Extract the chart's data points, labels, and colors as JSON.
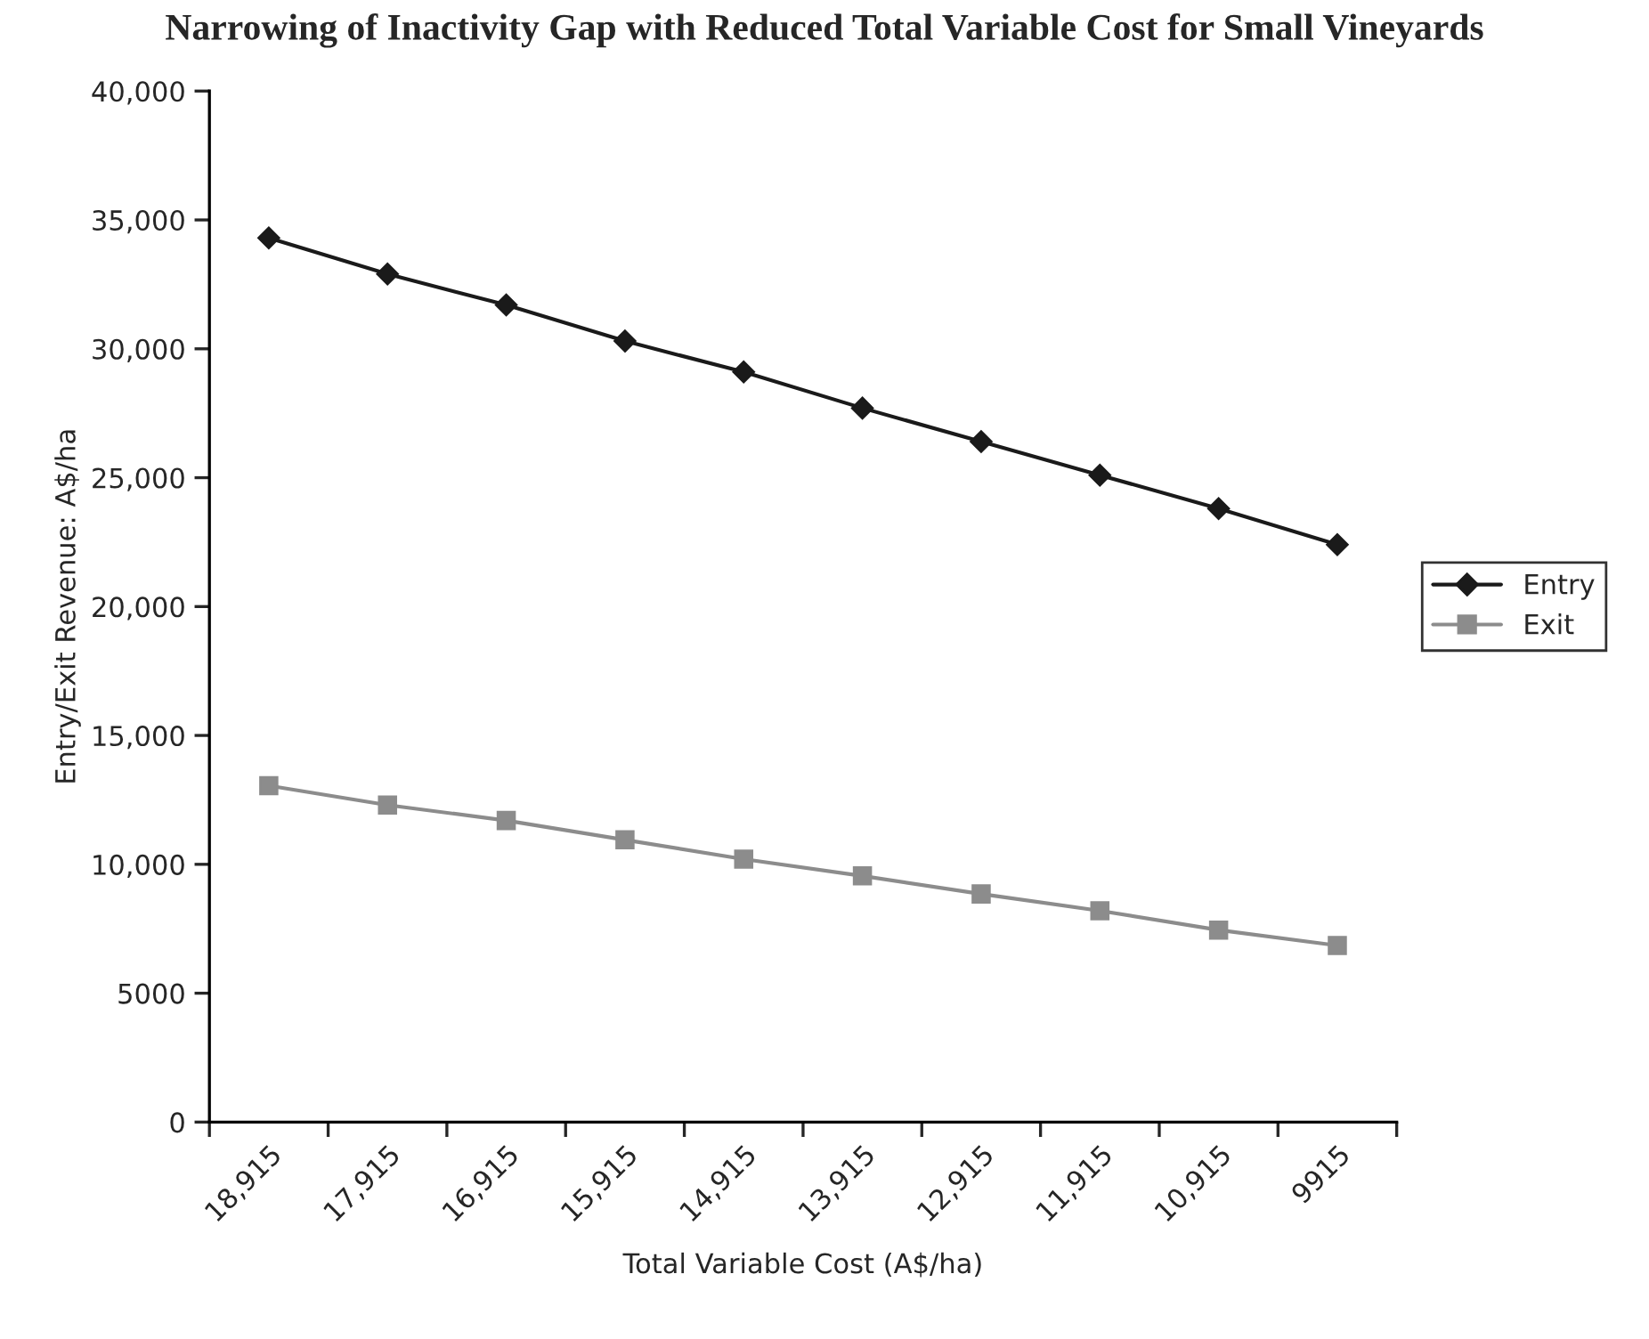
{
  "chart_data": {
    "type": "line",
    "title": "Narrowing of Inactivity Gap with Reduced Total Variable Cost for Small Vineyards",
    "xlabel": "Total Variable Cost (A$/ha)",
    "ylabel": "Entry/Exit Revenue: A$/ha",
    "categories": [
      "18,915",
      "17,915",
      "16,915",
      "15,915",
      "14,915",
      "13,915",
      "12,915",
      "11,915",
      "10,915",
      "9915"
    ],
    "series": [
      {
        "name": "Entry",
        "color": "#1a1a1a",
        "marker": "diamond",
        "values": [
          34300,
          32900,
          31700,
          30300,
          29100,
          27700,
          26400,
          25100,
          23800,
          22400
        ]
      },
      {
        "name": "Exit",
        "color": "#8c8c8c",
        "marker": "square",
        "values": [
          13050,
          12300,
          11700,
          10950,
          10200,
          9550,
          8850,
          8200,
          7450,
          6850
        ]
      }
    ],
    "ylim": [
      0,
      40000
    ],
    "yticks": [
      0,
      5000,
      {
        "value": 10000,
        "label": "10,000"
      },
      {
        "value": 15000,
        "label": "15,000"
      },
      {
        "value": 20000,
        "label": "20,000"
      },
      {
        "value": 25000,
        "label": "25,000"
      },
      {
        "value": 30000,
        "label": "30,000"
      },
      {
        "value": 35000,
        "label": "35,000"
      },
      {
        "value": 40000,
        "label": "40,000"
      }
    ],
    "grid": false,
    "legend": "right",
    "line_style": "solid"
  }
}
